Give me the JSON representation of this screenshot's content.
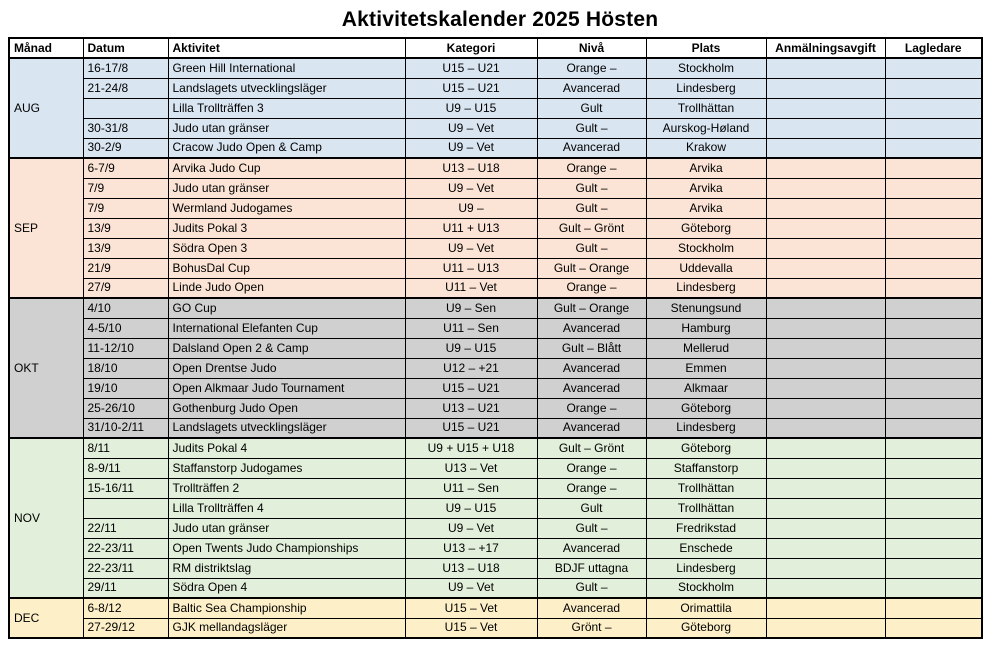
{
  "title": "Aktivitetskalender 2025 Hösten",
  "columns": [
    "Månad",
    "Datum",
    "Aktivitet",
    "Kategori",
    "Nivå",
    "Plats",
    "Anmälningsavgift",
    "Lagledare"
  ],
  "groups": [
    {
      "month": "AUG",
      "color": "#d9e5f1",
      "rows": [
        {
          "datum": "16-17/8",
          "aktivitet": "Green Hill International",
          "kategori": "U15 – U21",
          "niva": "Orange –",
          "plats": "Stockholm",
          "avgift": "",
          "lagledare": ""
        },
        {
          "datum": "21-24/8",
          "aktivitet": "Landslagets utvecklingsläger",
          "kategori": "U15 – U21",
          "niva": "Avancerad",
          "plats": "Lindesberg",
          "avgift": "",
          "lagledare": ""
        },
        {
          "datum": "",
          "aktivitet": "Lilla Trollträffen 3",
          "kategori": "U9 – U15",
          "niva": "Gult",
          "plats": "Trollhättan",
          "avgift": "",
          "lagledare": ""
        },
        {
          "datum": "30-31/8",
          "aktivitet": "Judo utan gränser",
          "kategori": "U9 – Vet",
          "niva": "Gult –",
          "plats": "Aurskog-Høland",
          "avgift": "",
          "lagledare": ""
        },
        {
          "datum": "30-2/9",
          "aktivitet": "Cracow Judo Open & Camp",
          "kategori": "U9 – Vet",
          "niva": "Avancerad",
          "plats": "Krakow",
          "avgift": "",
          "lagledare": ""
        }
      ]
    },
    {
      "month": "SEP",
      "color": "#fbe4d5",
      "rows": [
        {
          "datum": "6-7/9",
          "aktivitet": "Arvika Judo Cup",
          "kategori": "U13 – U18",
          "niva": "Orange –",
          "plats": "Arvika",
          "avgift": "",
          "lagledare": ""
        },
        {
          "datum": "7/9",
          "aktivitet": "Judo utan gränser",
          "kategori": "U9 – Vet",
          "niva": "Gult –",
          "plats": "Arvika",
          "avgift": "",
          "lagledare": ""
        },
        {
          "datum": "7/9",
          "aktivitet": "Wermland Judogames",
          "kategori": "U9 –",
          "niva": "Gult –",
          "plats": "Arvika",
          "avgift": "",
          "lagledare": ""
        },
        {
          "datum": "13/9",
          "aktivitet": "Judits Pokal 3",
          "kategori": "U11 + U13",
          "niva": "Gult – Grönt",
          "plats": "Göteborg",
          "avgift": "",
          "lagledare": ""
        },
        {
          "datum": "13/9",
          "aktivitet": "Södra Open 3",
          "kategori": "U9 – Vet",
          "niva": "Gult –",
          "plats": "Stockholm",
          "avgift": "",
          "lagledare": ""
        },
        {
          "datum": "21/9",
          "aktivitet": "BohusDal Cup",
          "kategori": "U11 – U13",
          "niva": "Gult – Orange",
          "plats": "Uddevalla",
          "avgift": "",
          "lagledare": ""
        },
        {
          "datum": "27/9",
          "aktivitet": "Linde Judo Open",
          "kategori": "U11 – Vet",
          "niva": "Orange –",
          "plats": "Lindesberg",
          "avgift": "",
          "lagledare": ""
        }
      ]
    },
    {
      "month": "OKT",
      "color": "#d0d0d0",
      "rows": [
        {
          "datum": "4/10",
          "aktivitet": "GO Cup",
          "kategori": "U9 – Sen",
          "niva": "Gult – Orange",
          "plats": "Stenungsund",
          "avgift": "",
          "lagledare": ""
        },
        {
          "datum": "4-5/10",
          "aktivitet": "International Elefanten Cup",
          "kategori": "U11 – Sen",
          "niva": "Avancerad",
          "plats": "Hamburg",
          "avgift": "",
          "lagledare": ""
        },
        {
          "datum": "11-12/10",
          "aktivitet": "Dalsland Open 2 & Camp",
          "kategori": "U9 – U15",
          "niva": "Gult – Blått",
          "plats": "Mellerud",
          "avgift": "",
          "lagledare": ""
        },
        {
          "datum": "18/10",
          "aktivitet": "Open Drentse Judo",
          "kategori": "U12 – +21",
          "niva": "Avancerad",
          "plats": "Emmen",
          "avgift": "",
          "lagledare": ""
        },
        {
          "datum": "19/10",
          "aktivitet": "Open Alkmaar Judo Tournament",
          "kategori": "U15 – U21",
          "niva": "Avancerad",
          "plats": "Alkmaar",
          "avgift": "",
          "lagledare": ""
        },
        {
          "datum": "25-26/10",
          "aktivitet": "Gothenburg Judo Open",
          "kategori": "U13 – U21",
          "niva": "Orange –",
          "plats": "Göteborg",
          "avgift": "",
          "lagledare": ""
        },
        {
          "datum": "31/10-2/11",
          "aktivitet": "Landslagets utvecklingsläger",
          "kategori": "U15 – U21",
          "niva": "Avancerad",
          "plats": "Lindesberg",
          "avgift": "",
          "lagledare": ""
        }
      ]
    },
    {
      "month": "NOV",
      "color": "#e2efda",
      "rows": [
        {
          "datum": "8/11",
          "aktivitet": "Judits Pokal 4",
          "kategori": "U9 + U15 + U18",
          "niva": "Gult – Grönt",
          "plats": "Göteborg",
          "avgift": "",
          "lagledare": ""
        },
        {
          "datum": "8-9/11",
          "aktivitet": "Staffanstorp Judogames",
          "kategori": "U13 – Vet",
          "niva": "Orange –",
          "plats": "Staffanstorp",
          "avgift": "",
          "lagledare": ""
        },
        {
          "datum": "15-16/11",
          "aktivitet": "Trollträffen 2",
          "kategori": "U11 – Sen",
          "niva": "Orange –",
          "plats": "Trollhättan",
          "avgift": "",
          "lagledare": ""
        },
        {
          "datum": "",
          "aktivitet": "Lilla Trollträffen 4",
          "kategori": "U9 – U15",
          "niva": "Gult",
          "plats": "Trollhättan",
          "avgift": "",
          "lagledare": ""
        },
        {
          "datum": "22/11",
          "aktivitet": "Judo utan gränser",
          "kategori": "U9 – Vet",
          "niva": "Gult –",
          "plats": "Fredrikstad",
          "avgift": "",
          "lagledare": ""
        },
        {
          "datum": "22-23/11",
          "aktivitet": "Open Twents Judo Championships",
          "kategori": "U13 – +17",
          "niva": "Avancerad",
          "plats": "Enschede",
          "avgift": "",
          "lagledare": ""
        },
        {
          "datum": "22-23/11",
          "aktivitet": "RM distriktslag",
          "kategori": "U13 – U18",
          "niva": "BDJF uttagna",
          "plats": "Lindesberg",
          "avgift": "",
          "lagledare": ""
        },
        {
          "datum": "29/11",
          "aktivitet": "Södra Open 4",
          "kategori": "U9 – Vet",
          "niva": "Gult –",
          "plats": "Stockholm",
          "avgift": "",
          "lagledare": ""
        }
      ]
    },
    {
      "month": "DEC",
      "color": "#fdf0c8",
      "rows": [
        {
          "datum": "6-8/12",
          "aktivitet": "Baltic Sea Championship",
          "kategori": "U15 – Vet",
          "niva": "Avancerad",
          "plats": "Orimattila",
          "avgift": "",
          "lagledare": ""
        },
        {
          "datum": "27-29/12",
          "aktivitet": "GJK mellandagsläger",
          "kategori": "U15 – Vet",
          "niva": "Grönt –",
          "plats": "Göteborg",
          "avgift": "",
          "lagledare": ""
        }
      ]
    }
  ]
}
